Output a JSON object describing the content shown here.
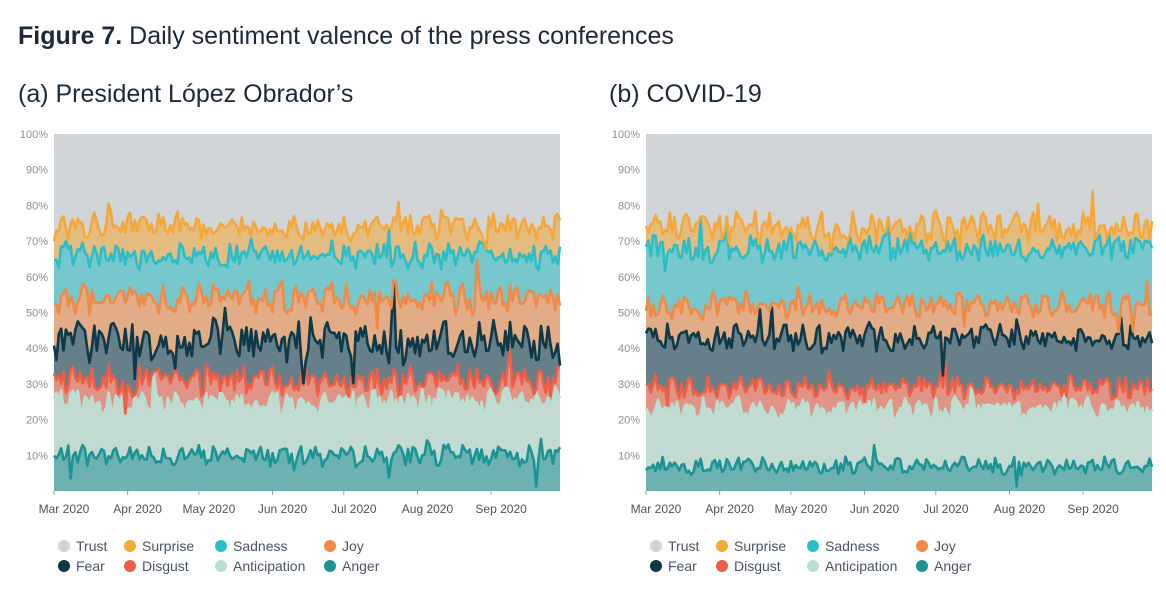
{
  "figure": {
    "label": "Figure 7.",
    "title": "Daily sentiment valence of the press conferences"
  },
  "colors": {
    "Trust": "#d1d4d6",
    "Surprise": "#f5a83a",
    "Sadness": "#2cbdc6",
    "Joy": "#f08a46",
    "Fear": "#0e3948",
    "Disgust": "#ef5e46",
    "Anticipation": "#b8dfd0",
    "Anger": "#1b9594"
  },
  "legend": [
    "Trust",
    "Surprise",
    "Sadness",
    "Joy",
    "Fear",
    "Disgust",
    "Anticipation",
    "Anger"
  ],
  "chart_data": [
    {
      "type": "area",
      "stacked": true,
      "title": "(a) President López Obrador’s",
      "x_ticks": [
        "Mar 2020",
        "Apr 2020",
        "May 2020",
        "Jun 2020",
        "Jul 2020",
        "Aug 2020",
        "Sep 2020"
      ],
      "x_start": "2020-03-01",
      "x_end": "2020-09-30",
      "y_ticks": [
        "10%",
        "20%",
        "30%",
        "40%",
        "50%",
        "60%",
        "70%",
        "80%",
        "90%",
        "100%"
      ],
      "ylim": [
        0,
        100
      ],
      "series": [
        {
          "name": "Anger",
          "mean": 10,
          "amp": 2.5
        },
        {
          "name": "Anticipation",
          "mean": 25,
          "amp": 3
        },
        {
          "name": "Disgust",
          "mean": 31,
          "amp": 3.5
        },
        {
          "name": "Fear",
          "mean": 42,
          "amp": 5
        },
        {
          "name": "Joy",
          "mean": 54,
          "amp": 3.5
        },
        {
          "name": "Sadness",
          "mean": 66,
          "amp": 3
        },
        {
          "name": "Surprise",
          "mean": 74,
          "amp": 3
        },
        {
          "name": "Trust",
          "mean": 100,
          "amp": 0
        }
      ]
    },
    {
      "type": "area",
      "stacked": true,
      "title": "(b) COVID-19",
      "x_ticks": [
        "Mar 2020",
        "Apr 2020",
        "May 2020",
        "Jun 2020",
        "Jul 2020",
        "Aug 2020",
        "Sep 2020"
      ],
      "x_start": "2020-03-01",
      "x_end": "2020-09-30",
      "y_ticks": [
        "10%",
        "20%",
        "30%",
        "40%",
        "50%",
        "60%",
        "70%",
        "80%",
        "90%",
        "100%"
      ],
      "ylim": [
        0,
        100
      ],
      "series": [
        {
          "name": "Anger",
          "mean": 7,
          "amp": 2
        },
        {
          "name": "Anticipation",
          "mean": 23,
          "amp": 2.5
        },
        {
          "name": "Disgust",
          "mean": 29,
          "amp": 2.5
        },
        {
          "name": "Fear",
          "mean": 43,
          "amp": 3
        },
        {
          "name": "Joy",
          "mean": 52,
          "amp": 3
        },
        {
          "name": "Sadness",
          "mean": 68,
          "amp": 3
        },
        {
          "name": "Surprise",
          "mean": 74,
          "amp": 3.5
        },
        {
          "name": "Trust",
          "mean": 100,
          "amp": 0
        }
      ]
    }
  ]
}
